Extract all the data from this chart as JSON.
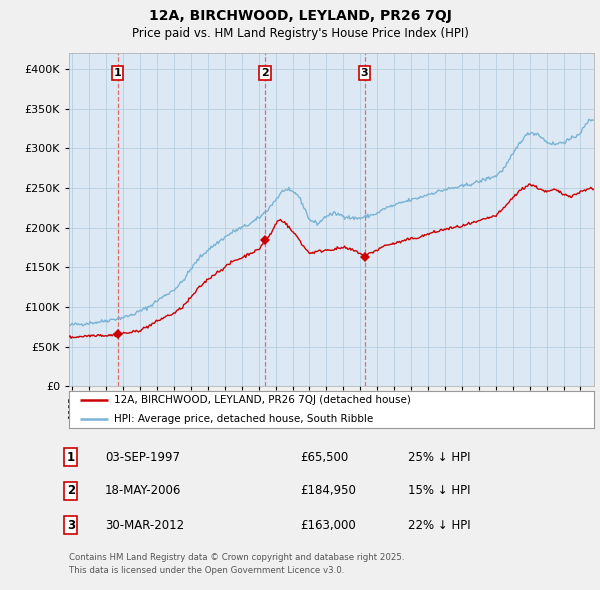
{
  "title1": "12A, BIRCHWOOD, LEYLAND, PR26 7QJ",
  "title2": "Price paid vs. HM Land Registry's House Price Index (HPI)",
  "legend_line1": "12A, BIRCHWOOD, LEYLAND, PR26 7QJ (detached house)",
  "legend_line2": "HPI: Average price, detached house, South Ribble",
  "footer1": "Contains HM Land Registry data © Crown copyright and database right 2025.",
  "footer2": "This data is licensed under the Open Government Licence v3.0.",
  "transaction1_label": "1",
  "transaction1_date": "03-SEP-1997",
  "transaction1_price": "£65,500",
  "transaction1_hpi": "25% ↓ HPI",
  "transaction2_label": "2",
  "transaction2_date": "18-MAY-2006",
  "transaction2_price": "£184,950",
  "transaction2_hpi": "15% ↓ HPI",
  "transaction3_label": "3",
  "transaction3_date": "30-MAR-2012",
  "transaction3_price": "£163,000",
  "transaction3_hpi": "22% ↓ HPI",
  "transaction1_x": 1997.67,
  "transaction1_y": 65500,
  "transaction2_x": 2006.38,
  "transaction2_y": 184950,
  "transaction3_x": 2012.25,
  "transaction3_y": 163000,
  "hpi_color": "#7ab3d4",
  "price_color": "#cc0000",
  "dashed_color": "#e06060",
  "plot_bg_color": "#dce9f5",
  "background_color": "#f0f0f0",
  "grid_color": "#b8cfe0",
  "ylim": [
    0,
    420000
  ],
  "xlim_start": 1994.8,
  "xlim_end": 2025.8
}
